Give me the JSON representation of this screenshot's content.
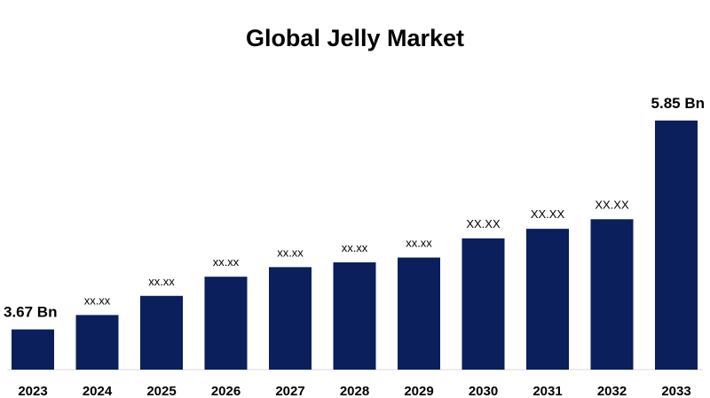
{
  "chart_data": {
    "type": "bar",
    "title": "Global Jelly Market",
    "xlabel": "",
    "ylabel": "",
    "categories": [
      "2023",
      "2024",
      "2025",
      "2026",
      "2027",
      "2028",
      "2029",
      "2030",
      "2031",
      "2032",
      "2033"
    ],
    "values": [
      3.67,
      3.82,
      4.02,
      4.22,
      4.32,
      4.37,
      4.42,
      4.62,
      4.72,
      4.82,
      5.85
    ],
    "value_labels": [
      "3.67 Bn",
      "xx.xx",
      "xx.xx",
      "xx.xx",
      "xx.xx",
      "xx.xx",
      "xx.xx",
      "XX.XX",
      "XX.XX",
      "XX.XX",
      "5.85 Bn"
    ],
    "ylim": [
      3.25,
      5.85
    ],
    "bar_color": "#0a1f5c",
    "grid": false,
    "legend": "none"
  }
}
